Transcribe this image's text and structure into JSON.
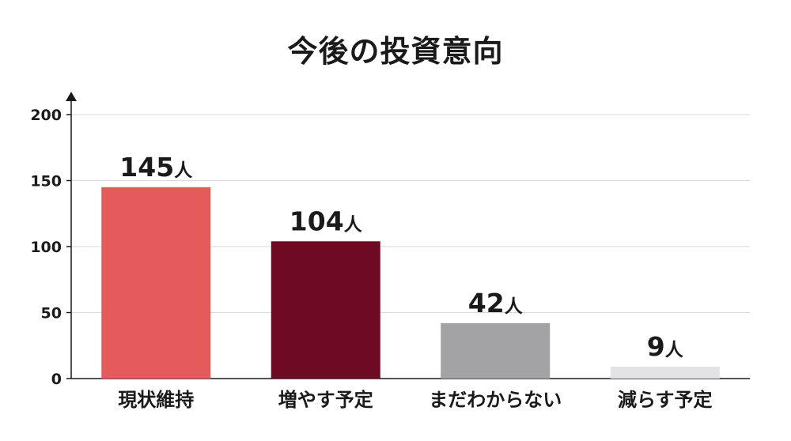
{
  "title": "今後の投資意向",
  "chart_data": {
    "type": "bar",
    "categories": [
      "現状維持",
      "増やす予定",
      "まだわからない",
      "減らす予定"
    ],
    "values": [
      145,
      104,
      42,
      9
    ],
    "value_labels": [
      "145人",
      "104人",
      "42人",
      "9人"
    ],
    "unit": "人",
    "colors": [
      "#e55a5a",
      "#6e0a22",
      "#a3a3a6",
      "#e3e3e5"
    ],
    "ylim": [
      0,
      200
    ],
    "yticks": [
      0,
      50,
      100,
      150,
      200
    ],
    "grid": true,
    "legend": "none",
    "xlabel": "",
    "ylabel": ""
  }
}
